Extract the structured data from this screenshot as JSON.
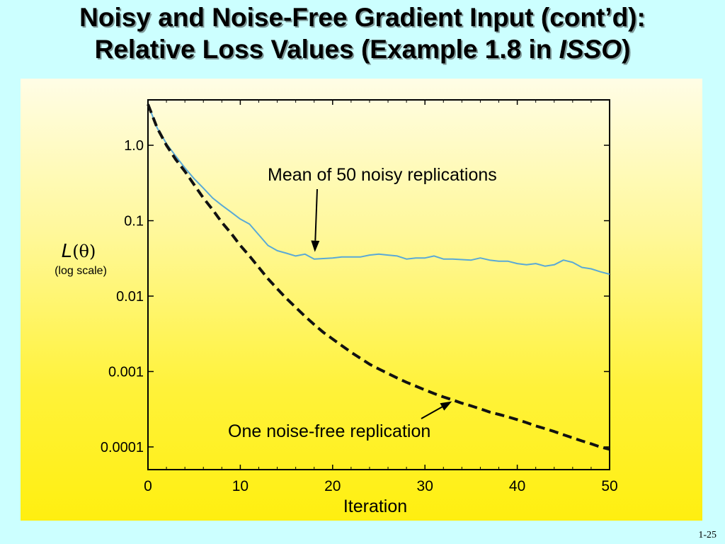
{
  "slide": {
    "title_line1": "Noisy and Noise-Free Gradient Input (cont’d):",
    "title_line2_prefix": "Relative Loss Values (Example 1.8 in ",
    "title_line2_italic": "ISSO",
    "title_line2_suffix": ")",
    "page_number": "1-25"
  },
  "chart_data": {
    "type": "line",
    "xlabel": "Iteration",
    "ylabel_symbol_italic": "L",
    "ylabel_symbol_rest": "(θ)",
    "ylabel_note": "(log scale)",
    "yscale": "log",
    "xlim": [
      0,
      50
    ],
    "ylim": [
      5e-05,
      4
    ],
    "x_ticks": [
      0,
      10,
      20,
      30,
      40,
      50
    ],
    "x_tick_labels": [
      "0",
      "10",
      "20",
      "30",
      "40",
      "50"
    ],
    "y_ticks": [
      1.0,
      0.1,
      0.01,
      0.001,
      0.0001
    ],
    "y_tick_labels": [
      "1.0",
      "0.1",
      "0.01",
      "0.001",
      "0.0001"
    ],
    "grid": false,
    "series": [
      {
        "key": "noisy",
        "color": "#5aa9d6",
        "dash": "solid",
        "x": [
          0,
          1,
          2,
          3,
          4,
          5,
          6,
          7,
          8,
          9,
          10,
          11,
          12,
          13,
          14,
          15,
          16,
          17,
          18,
          19,
          20,
          21,
          22,
          23,
          24,
          25,
          26,
          27,
          28,
          29,
          30,
          31,
          32,
          33,
          34,
          35,
          36,
          37,
          38,
          39,
          40,
          41,
          42,
          43,
          44,
          45,
          46,
          47,
          48,
          49,
          50
        ],
        "y": [
          3.5,
          1.7,
          1.05,
          0.72,
          0.5,
          0.36,
          0.27,
          0.2,
          0.16,
          0.13,
          0.105,
          0.09,
          0.065,
          0.047,
          0.04,
          0.037,
          0.034,
          0.036,
          0.031,
          0.0315,
          0.032,
          0.033,
          0.033,
          0.033,
          0.035,
          0.036,
          0.035,
          0.034,
          0.031,
          0.032,
          0.032,
          0.034,
          0.031,
          0.031,
          0.0305,
          0.03,
          0.032,
          0.03,
          0.029,
          0.029,
          0.027,
          0.026,
          0.027,
          0.025,
          0.026,
          0.03,
          0.028,
          0.024,
          0.023,
          0.021,
          0.0195
        ]
      },
      {
        "key": "noise-free",
        "color": "#111111",
        "dash": "dashed",
        "x": [
          0,
          1,
          2,
          3,
          4,
          5,
          6,
          7,
          8,
          9,
          10,
          11,
          12,
          13,
          14,
          15,
          16,
          17,
          18,
          19,
          20,
          21,
          22,
          23,
          24,
          25,
          26,
          27,
          28,
          29,
          30,
          31,
          32,
          33,
          34,
          35,
          36,
          37,
          38,
          39,
          40,
          41,
          42,
          43,
          44,
          45,
          46,
          47,
          48,
          49,
          50
        ],
        "y": [
          3.5,
          1.7,
          1.0,
          0.65,
          0.45,
          0.3,
          0.2,
          0.14,
          0.095,
          0.068,
          0.047,
          0.034,
          0.024,
          0.017,
          0.0125,
          0.0093,
          0.0071,
          0.0054,
          0.0042,
          0.0033,
          0.0027,
          0.0022,
          0.0018,
          0.0015,
          0.00125,
          0.00108,
          0.00094,
          0.00082,
          0.00072,
          0.00064,
          0.00057,
          0.00051,
          0.00046,
          0.00042,
          0.00038,
          0.00035,
          0.00032,
          0.00029,
          0.00027,
          0.00025,
          0.00023,
          0.00021,
          0.00019,
          0.000175,
          0.00016,
          0.000145,
          0.000132,
          0.00012,
          0.00011,
          0.0001,
          9.3e-05
        ]
      }
    ],
    "annotations": [
      {
        "key": "noisy-label",
        "text": "Mean of 50 noisy replications",
        "arrow_to": {
          "x": 18,
          "y": 0.031
        }
      },
      {
        "key": "noise-free-label",
        "text": "One noise-free replication",
        "arrow_to": {
          "x": 33,
          "y": 0.00042
        }
      }
    ]
  }
}
